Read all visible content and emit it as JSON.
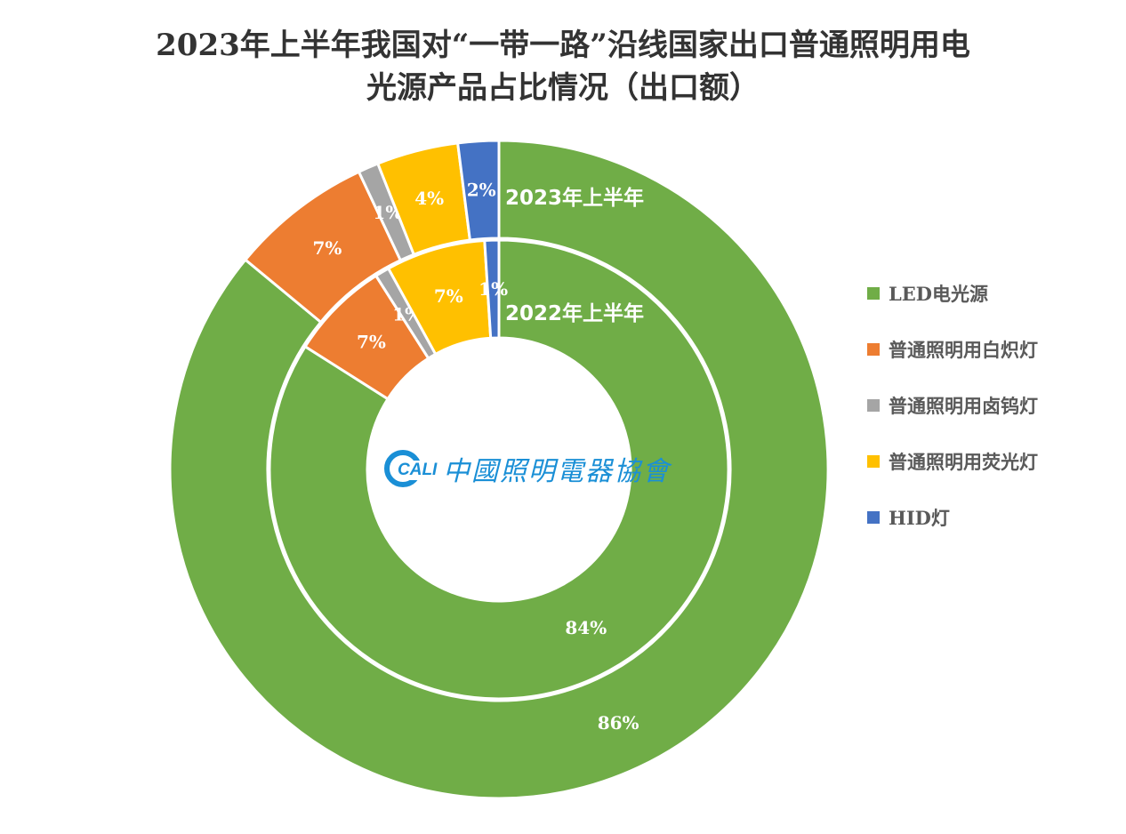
{
  "chart_data": {
    "type": "pie",
    "subtype": "nested-donut",
    "title_lines": [
      "2023年上半年我国对“一带一路”沿线国家出口普通照明用电",
      "光源产品占比情况（出口额）"
    ],
    "categories": [
      "LED电光源",
      "普通照明用白炽灯",
      "普通照明用卤钨灯",
      "普通照明用荧光灯",
      "HID灯"
    ],
    "colors": [
      "#70AD47",
      "#ED7D31",
      "#A5A5A5",
      "#FFC000",
      "#4472C4"
    ],
    "series": [
      {
        "name": "2023年上半年",
        "ring": "outer",
        "values": [
          86,
          7,
          1,
          4,
          2
        ],
        "labels": [
          "86%",
          "7%",
          "1%",
          "4%",
          "2%"
        ]
      },
      {
        "name": "2022年上半年",
        "ring": "inner",
        "values": [
          84,
          7,
          1,
          7,
          1
        ],
        "labels": [
          "84%",
          "7%",
          "1%",
          "7%",
          "1%"
        ]
      }
    ],
    "legend_position": "right",
    "direction": "clockwise from top"
  },
  "logo": {
    "mark": "CALI",
    "text": "中國照明電器協會"
  }
}
